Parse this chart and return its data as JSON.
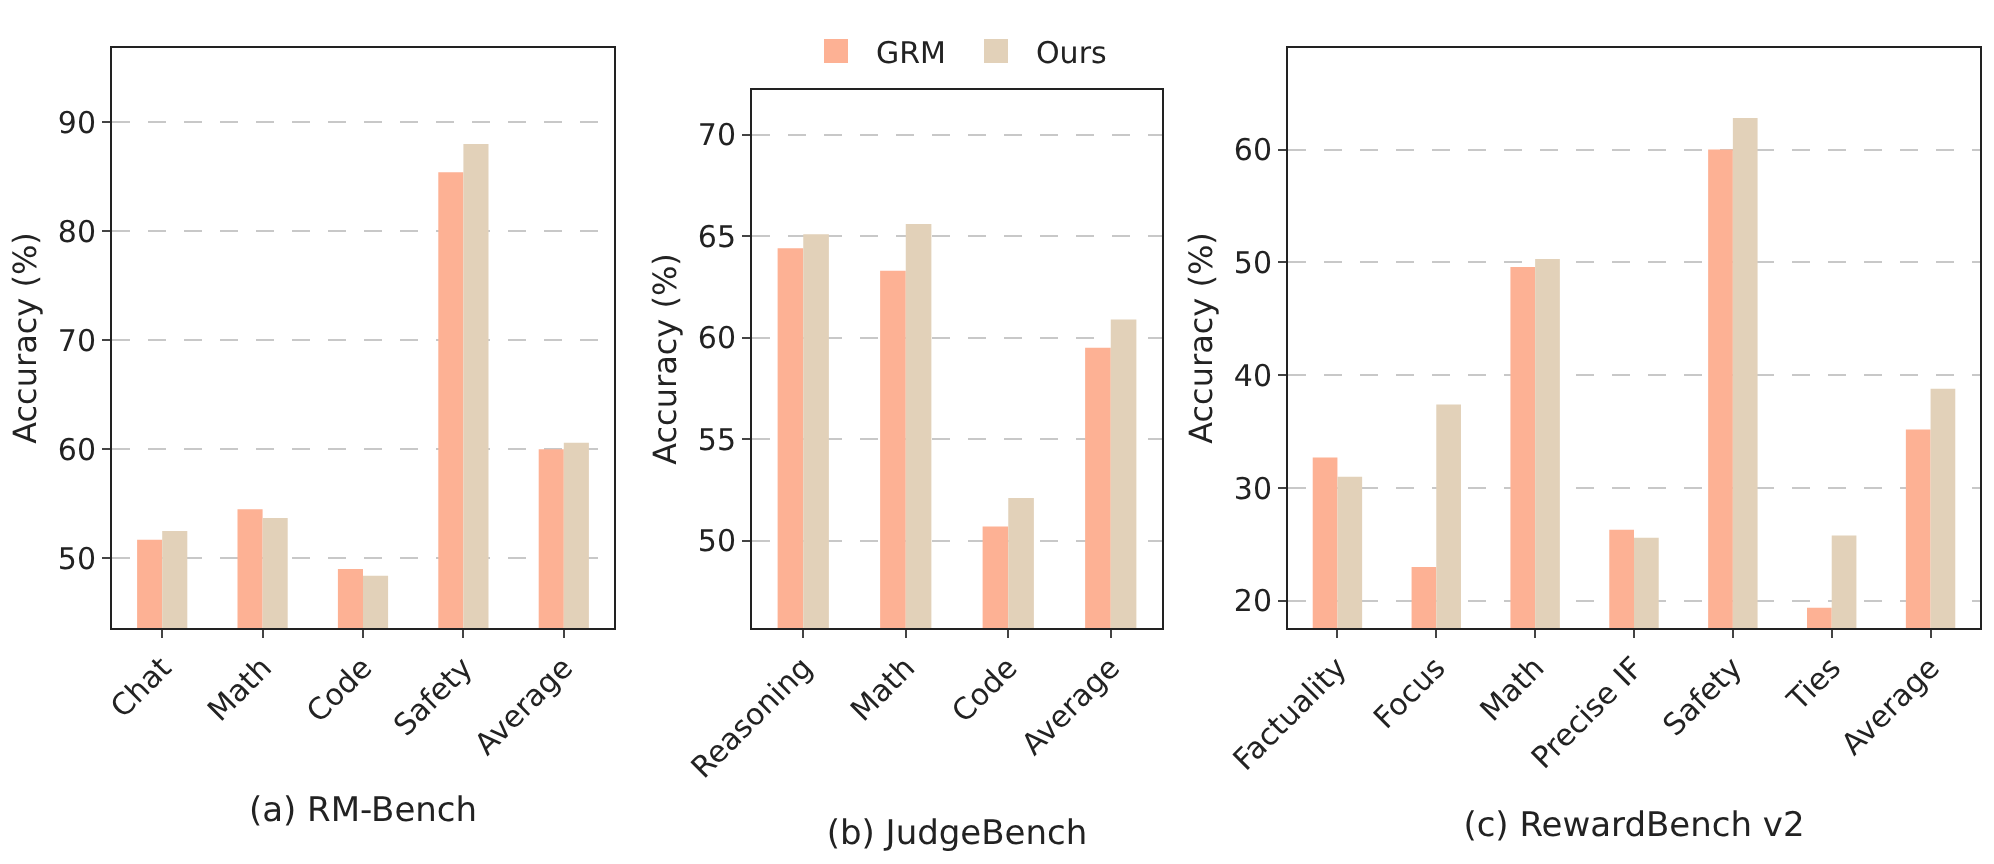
{
  "chart_data": [
    {
      "type": "bar",
      "xlabel": "(a) RM-Bench",
      "ylabel": "Accuracy (%)",
      "categories": [
        "Chat",
        "Math",
        "Code",
        "Safety",
        "Average"
      ],
      "series": [
        {
          "color": "#fdb194",
          "values": [
            51.7,
            54.5,
            49.0,
            85.4,
            60.0
          ]
        },
        {
          "color": "#e2d1b9",
          "values": [
            52.5,
            53.7,
            48.4,
            88.0,
            60.6
          ]
        }
      ],
      "ylim": [
        43.6,
        96.8
      ],
      "yticks": [
        50,
        60,
        70,
        80,
        90
      ],
      "grid": "y"
    },
    {
      "type": "bar",
      "xlabel": "(b) JudgeBench",
      "ylabel": "Accuracy (%)",
      "categories": [
        "Reasoning",
        "Math",
        "Code",
        "Average"
      ],
      "series": [
        {
          "name": "GRM",
          "color": "#fdb194",
          "values": [
            64.4,
            63.3,
            50.7,
            59.5
          ]
        },
        {
          "name": "Ours",
          "color": "#e2d1b9",
          "values": [
            65.1,
            65.6,
            52.1,
            60.9
          ]
        }
      ],
      "ylim": [
        45.7,
        72.2
      ],
      "yticks": [
        50,
        55,
        60,
        65,
        70
      ],
      "grid": "y",
      "legend": "top"
    },
    {
      "type": "bar",
      "xlabel": "(c) RewardBench v2",
      "ylabel": "Accuracy (%)",
      "categories": [
        "Factuality",
        "Focus",
        "Math",
        "Precise IF",
        "Safety",
        "Ties",
        "Average"
      ],
      "series": [
        {
          "color": "#fdb194",
          "values": [
            32.7,
            23.0,
            49.6,
            26.3,
            60.0,
            19.4,
            35.2
          ]
        },
        {
          "color": "#e2d1b9",
          "values": [
            31.0,
            37.4,
            50.3,
            25.6,
            62.8,
            25.8,
            38.8
          ]
        }
      ],
      "ylim": [
        17.6,
        69.0
      ],
      "yticks": [
        20,
        30,
        40,
        50,
        60
      ],
      "grid": "y"
    }
  ]
}
